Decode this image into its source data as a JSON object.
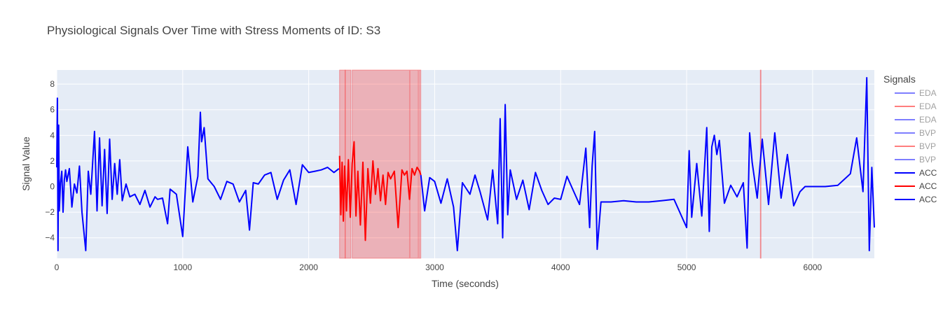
{
  "chart_data": {
    "type": "line",
    "title": "Physiological Signals Over Time with Stress Moments of ID: S3",
    "xlabel": "Time (seconds)",
    "ylabel": "Signal Value",
    "xlim": [
      0,
      6490
    ],
    "ylim": [
      -5.6,
      9.1
    ],
    "x_ticks": [
      0,
      1000,
      2000,
      3000,
      4000,
      5000,
      6000
    ],
    "y_ticks": [
      -4,
      -2,
      0,
      2,
      4,
      6,
      8
    ],
    "grid": true,
    "legend": {
      "title": "Signals",
      "placement": "right",
      "entries": [
        {
          "name": "EDA",
          "color": "#0000ff",
          "faded": true
        },
        {
          "name": "EDA",
          "color": "#ff0000",
          "faded": true
        },
        {
          "name": "EDA",
          "color": "#0000ff",
          "faded": true
        },
        {
          "name": "BVP",
          "color": "#0000ff",
          "faded": true
        },
        {
          "name": "BVP",
          "color": "#ff0000",
          "faded": true
        },
        {
          "name": "BVP",
          "color": "#0000ff",
          "faded": true
        },
        {
          "name": "ACC",
          "color": "#0000ff",
          "faded": false
        },
        {
          "name": "ACC",
          "color": "#ff0000",
          "faded": false
        },
        {
          "name": "ACC",
          "color": "#0000ff",
          "faded": false
        }
      ]
    },
    "stress_regions": [
      [
        2245,
        2290
      ],
      [
        2290,
        2335
      ],
      [
        2345,
        2800
      ],
      [
        2805,
        2870
      ],
      [
        2875,
        2890
      ],
      [
        5585,
        5590
      ]
    ],
    "series": [
      {
        "name": "ACC",
        "color": "#0000ff",
        "x": [
          0,
          5,
          10,
          15,
          20,
          30,
          40,
          50,
          60,
          70,
          80,
          100,
          120,
          140,
          160,
          180,
          200,
          230,
          250,
          270,
          300,
          320,
          340,
          360,
          380,
          400,
          420,
          440,
          460,
          480,
          500,
          520,
          550,
          580,
          620,
          660,
          700,
          740,
          780,
          800,
          840,
          880,
          900,
          950,
          1000,
          1040,
          1080,
          1120,
          1140,
          1150,
          1170,
          1200,
          1250,
          1300,
          1350,
          1400,
          1450,
          1500,
          1530,
          1560,
          1600,
          1650,
          1700,
          1750,
          1800,
          1850,
          1900,
          1950,
          2000,
          2050,
          2100,
          2150,
          2200,
          2240
        ],
        "values": [
          1.5,
          6.9,
          -5.0,
          4.8,
          -1.9,
          0.3,
          1.2,
          -2.0,
          0.5,
          1.3,
          0.4,
          1.4,
          -1.6,
          0.2,
          -0.5,
          1.6,
          -2.0,
          -5.0,
          1.2,
          -0.6,
          4.3,
          -1.9,
          3.8,
          -1.5,
          2.9,
          -2.1,
          3.7,
          -1.0,
          1.8,
          -0.6,
          2.1,
          -1.1,
          0.2,
          -0.8,
          -0.6,
          -1.4,
          -0.3,
          -1.6,
          -0.8,
          -1.0,
          -0.9,
          -2.9,
          -0.2,
          -0.6,
          -3.9,
          3.1,
          -1.2,
          0.8,
          5.8,
          3.5,
          4.6,
          0.6,
          0.0,
          -1.0,
          0.4,
          0.2,
          -1.2,
          -0.3,
          -3.4,
          0.3,
          0.2,
          0.9,
          1.1,
          -1.0,
          0.5,
          1.3,
          -1.4,
          1.7,
          1.1,
          1.2,
          1.3,
          1.5,
          1.1,
          1.4
        ]
      },
      {
        "name": "ACC",
        "color": "#ff0000",
        "x": [
          2245,
          2255,
          2265,
          2275,
          2285,
          2300,
          2315,
          2330,
          2345,
          2360,
          2375,
          2390,
          2410,
          2430,
          2450,
          2470,
          2490,
          2510,
          2530,
          2550,
          2570,
          2590,
          2610,
          2630,
          2650,
          2680,
          2710,
          2740,
          2760,
          2780,
          2800,
          2820,
          2840,
          2860,
          2880,
          2890
        ],
        "values": [
          2.4,
          -2.2,
          1.9,
          -2.7,
          1.6,
          -1.9,
          2.1,
          -2.4,
          1.8,
          3.5,
          -2.3,
          1.2,
          -3.0,
          1.9,
          -4.2,
          1.4,
          -1.3,
          2.0,
          -0.6,
          1.4,
          -1.1,
          0.9,
          -1.4,
          1.1,
          0.6,
          1.2,
          -3.2,
          1.3,
          0.9,
          1.2,
          -1.0,
          1.4,
          0.9,
          1.5,
          1.2,
          0.9
        ]
      },
      {
        "name": "ACC",
        "color": "#0000ff",
        "x": [
          2890,
          2920,
          2960,
          3000,
          3050,
          3100,
          3150,
          3180,
          3220,
          3280,
          3320,
          3360,
          3420,
          3460,
          3500,
          3520,
          3540,
          3560,
          3580,
          3600,
          3650,
          3700,
          3750,
          3800,
          3850,
          3900,
          3950,
          4000,
          4050,
          4100,
          4150,
          4200,
          4230,
          4250,
          4270,
          4290,
          4320,
          4400,
          4500,
          4600,
          4700,
          4800,
          4900,
          5000,
          5020,
          5040,
          5080,
          5120,
          5160,
          5180,
          5200,
          5220,
          5240,
          5260,
          5300,
          5350,
          5400,
          5450,
          5480,
          5500,
          5520,
          5560,
          5600,
          5650,
          5700,
          5750,
          5800,
          5850,
          5900,
          5940,
          6000,
          6100,
          6200,
          6300,
          6350,
          6400,
          6430,
          6450,
          6470,
          6490
        ],
        "values": [
          0.9,
          -1.9,
          0.7,
          0.4,
          -1.3,
          0.6,
          -1.6,
          -5.0,
          0.3,
          -0.6,
          0.9,
          -0.4,
          -2.6,
          1.3,
          -2.9,
          5.3,
          -4.0,
          6.4,
          -2.2,
          1.3,
          -1.0,
          0.5,
          -1.8,
          1.1,
          -0.3,
          -1.4,
          -0.9,
          -1.0,
          0.8,
          -0.3,
          -1.4,
          3.0,
          -3.2,
          1.6,
          4.3,
          -4.9,
          -1.2,
          -1.2,
          -1.1,
          -1.2,
          -1.2,
          -1.1,
          -1.0,
          -3.2,
          2.8,
          -2.4,
          1.8,
          -2.3,
          4.6,
          -3.5,
          3.1,
          4.0,
          2.5,
          3.6,
          -1.3,
          0.1,
          -0.8,
          0.3,
          -4.8,
          4.2,
          1.9,
          -0.9,
          3.7,
          -1.4,
          4.2,
          -0.9,
          2.5,
          -1.5,
          -0.4,
          0.0,
          0.0,
          0.0,
          0.1,
          1.0,
          3.8,
          -0.4,
          8.5,
          -5.0,
          1.5,
          -3.2
        ]
      }
    ]
  }
}
